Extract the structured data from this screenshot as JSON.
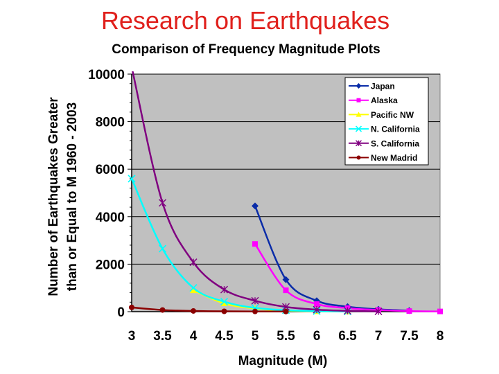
{
  "slide": {
    "title": "Research on Earthquakes"
  },
  "chart_data": {
    "type": "line",
    "title": "Comparison of Frequency Magnitude Plots",
    "xlabel": "Magnitude (M)",
    "ylabel_lines": [
      "Number of Earthquakes Greater",
      "than or Equal to M 1960 - 2003"
    ],
    "xlim": [
      3,
      8
    ],
    "ylim": [
      0,
      10000
    ],
    "x_ticks": [
      "3",
      "3.5",
      "4",
      "4.5",
      "5",
      "5.5",
      "6",
      "6.5",
      "7",
      "7.5",
      "8"
    ],
    "y_ticks": [
      "0",
      "2000",
      "4000",
      "6000",
      "8000",
      "10000"
    ],
    "y_tick_values": [
      0,
      2000,
      4000,
      6000,
      8000,
      10000
    ],
    "grid": "horizontal",
    "legend_position": "top-right",
    "series": [
      {
        "name": "Japan",
        "color": "#0a2ca8",
        "marker": "diamond",
        "points": [
          [
            5,
            4450
          ],
          [
            5.5,
            1350
          ],
          [
            6,
            460
          ],
          [
            6.5,
            210
          ],
          [
            7,
            100
          ],
          [
            7.5,
            45
          ]
        ]
      },
      {
        "name": "Alaska",
        "color": "#ff00ff",
        "marker": "square",
        "points": [
          [
            5,
            2850
          ],
          [
            5.5,
            900
          ],
          [
            6,
            320
          ],
          [
            6.5,
            150
          ],
          [
            7,
            70
          ],
          [
            7.5,
            25
          ],
          [
            8,
            10
          ]
        ]
      },
      {
        "name": "Pacific NW",
        "color": "#ffff00",
        "marker": "triangle",
        "points": [
          [
            4,
            900
          ],
          [
            4.5,
            350
          ],
          [
            5,
            130
          ],
          [
            5.5,
            45
          ],
          [
            6,
            15
          ],
          [
            6.5,
            5
          ]
        ]
      },
      {
        "name": "N. California",
        "color": "#00ffff",
        "marker": "x",
        "points": [
          [
            3,
            5600
          ],
          [
            3.5,
            2650
          ],
          [
            4,
            1000
          ],
          [
            4.5,
            420
          ],
          [
            5,
            160
          ],
          [
            5.5,
            60
          ],
          [
            6,
            22
          ],
          [
            6.5,
            8
          ]
        ]
      },
      {
        "name": "S. California",
        "color": "#800080",
        "marker": "asterisk",
        "points": [
          [
            3,
            10300
          ],
          [
            3.5,
            4580
          ],
          [
            4,
            2080
          ],
          [
            4.5,
            930
          ],
          [
            5,
            460
          ],
          [
            5.5,
            200
          ],
          [
            6,
            85
          ],
          [
            6.5,
            35
          ],
          [
            7,
            12
          ]
        ]
      },
      {
        "name": "New Madrid",
        "color": "#8b0000",
        "marker": "circle",
        "points": [
          [
            3,
            180
          ],
          [
            3.5,
            70
          ],
          [
            4,
            30
          ],
          [
            4.5,
            15
          ],
          [
            5,
            10
          ],
          [
            5.5,
            5
          ]
        ]
      }
    ]
  }
}
